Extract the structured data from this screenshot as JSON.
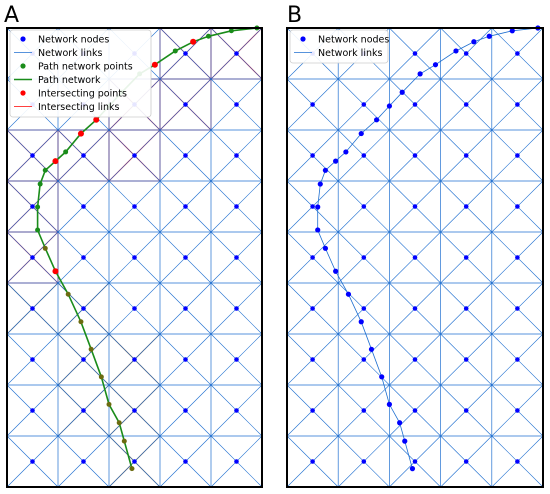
{
  "colors": {
    "network_node": "#0000ff",
    "network_link": "#1f6fd0",
    "path_point": "#1a8c1a",
    "path_line": "#1a8c1a",
    "intersect_point": "#ff0000",
    "intersect_link": "#ff0000",
    "frame": "#000000"
  },
  "panels": [
    {
      "letter": "A",
      "legend": [
        {
          "label": "Network nodes",
          "icon": "dot",
          "color": "#0000ff"
        },
        {
          "label": "Network links",
          "icon": "line",
          "color": "#1f6fd0"
        },
        {
          "label": "Path network points",
          "icon": "dot",
          "color": "#1a8c1a"
        },
        {
          "label": "Path network",
          "icon": "line",
          "color": "#1a8c1a"
        },
        {
          "label": "Intersecting points",
          "icon": "dot",
          "color": "#ff0000"
        },
        {
          "label": "Intersecting links",
          "icon": "line",
          "color": "#ff0000"
        }
      ]
    },
    {
      "letter": "B",
      "legend": [
        {
          "label": "Network nodes",
          "icon": "dot",
          "color": "#0000ff"
        },
        {
          "label": "Network links",
          "icon": "line",
          "color": "#1f6fd0"
        }
      ]
    }
  ],
  "grid": {
    "columns": 5,
    "rows": 9
  }
}
